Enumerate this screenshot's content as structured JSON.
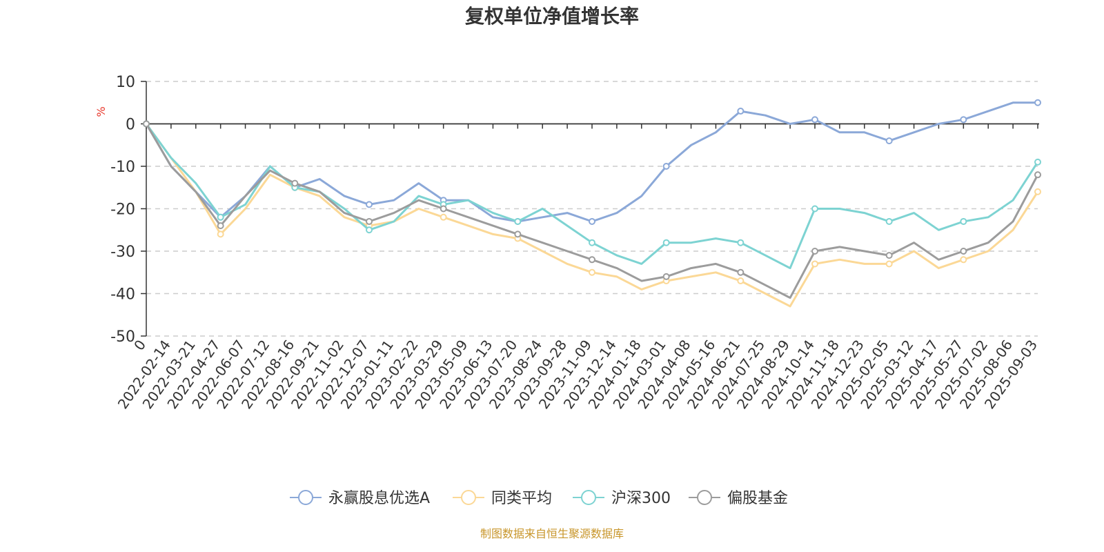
{
  "chart_data": {
    "type": "line",
    "title": "复权单位净值增长率",
    "ylabel": "%",
    "ylim": [
      -50,
      10
    ],
    "yticks": [
      10,
      0,
      -10,
      -20,
      -30,
      -40,
      -50
    ],
    "grid": true,
    "legend_position": "bottom",
    "xtick_labels": [
      "0",
      "2022-02-14",
      "2022-03-21",
      "2022-04-27",
      "2022-06-07",
      "2022-07-12",
      "2022-08-16",
      "2022-09-21",
      "2022-11-02",
      "2022-12-07",
      "2023-01-11",
      "2023-02-22",
      "2023-03-29",
      "2023-05-09",
      "2023-06-13",
      "2023-07-20",
      "2023-08-24",
      "2023-09-28",
      "2023-11-09",
      "2023-12-14",
      "2024-01-18",
      "2024-03-01",
      "2024-04-08",
      "2024-05-16",
      "2024-06-21",
      "2024-07-25",
      "2024-08-29",
      "2024-10-14",
      "2024-11-18",
      "2024-12-23",
      "2025-02-05",
      "2025-03-12",
      "2025-04-17",
      "2025-05-27",
      "2025-07-02",
      "2025-08-06",
      "2025-09-03"
    ],
    "x": [
      "0",
      "2022-02-14",
      "2022-03-21",
      "2022-04-27",
      "2022-06-07",
      "2022-07-12",
      "2022-08-16",
      "2022-09-21",
      "2022-11-02",
      "2022-12-07",
      "2023-01-11",
      "2023-02-22",
      "2023-03-29",
      "2023-05-09",
      "2023-06-13",
      "2023-07-20",
      "2023-08-24",
      "2023-09-28",
      "2023-11-09",
      "2023-12-14",
      "2024-01-18",
      "2024-03-01",
      "2024-04-08",
      "2024-05-16",
      "2024-06-21",
      "2024-07-25",
      "2024-08-29",
      "2024-10-14",
      "2024-11-18",
      "2024-12-23",
      "2025-02-05",
      "2025-03-12",
      "2025-04-17",
      "2025-05-27",
      "2025-07-02",
      "2025-08-06",
      "2025-09-03"
    ],
    "series": [
      {
        "name": "永赢股息优选A",
        "color": "#8ba8d8",
        "values": [
          0,
          -10,
          -16,
          -22,
          -17,
          -10,
          -15,
          -13,
          -17,
          -19,
          -18,
          -14,
          -18,
          -18,
          -22,
          -23,
          -22,
          -21,
          -23,
          -21,
          -17,
          -10,
          -5,
          -2,
          3,
          2,
          0,
          1,
          -2,
          -2,
          -4,
          -2,
          0,
          1,
          3,
          5,
          5
        ]
      },
      {
        "name": "同类平均",
        "color": "#fbd896",
        "values": [
          0,
          -8,
          -16,
          -26,
          -20,
          -12,
          -15,
          -17,
          -22,
          -24,
          -23,
          -20,
          -22,
          -24,
          -26,
          -27,
          -30,
          -33,
          -35,
          -36,
          -39,
          -37,
          -36,
          -35,
          -37,
          -40,
          -43,
          -33,
          -32,
          -33,
          -33,
          -30,
          -34,
          -32,
          -30,
          -25,
          -16
        ]
      },
      {
        "name": "沪深300",
        "color": "#7dd3d2",
        "values": [
          0,
          -8,
          -14,
          -22,
          -19,
          -10,
          -15,
          -16,
          -20,
          -25,
          -23,
          -17,
          -19,
          -18,
          -21,
          -23,
          -20,
          -24,
          -28,
          -31,
          -33,
          -28,
          -28,
          -27,
          -28,
          -31,
          -34,
          -20,
          -20,
          -21,
          -23,
          -21,
          -25,
          -23,
          -22,
          -18,
          -9
        ]
      },
      {
        "name": "偏股基金",
        "color": "#9c9c9c",
        "values": [
          0,
          -10,
          -16,
          -24,
          -17,
          -11,
          -14,
          -16,
          -21,
          -23,
          -21,
          -18,
          -20,
          -22,
          -24,
          -26,
          -28,
          -30,
          -32,
          -34,
          -37,
          -36,
          -34,
          -33,
          -35,
          -38,
          -41,
          -30,
          -29,
          -30,
          -31,
          -28,
          -32,
          -30,
          -28,
          -23,
          -12
        ]
      }
    ]
  },
  "footer_text": "制图数据来自恒生聚源数据库"
}
